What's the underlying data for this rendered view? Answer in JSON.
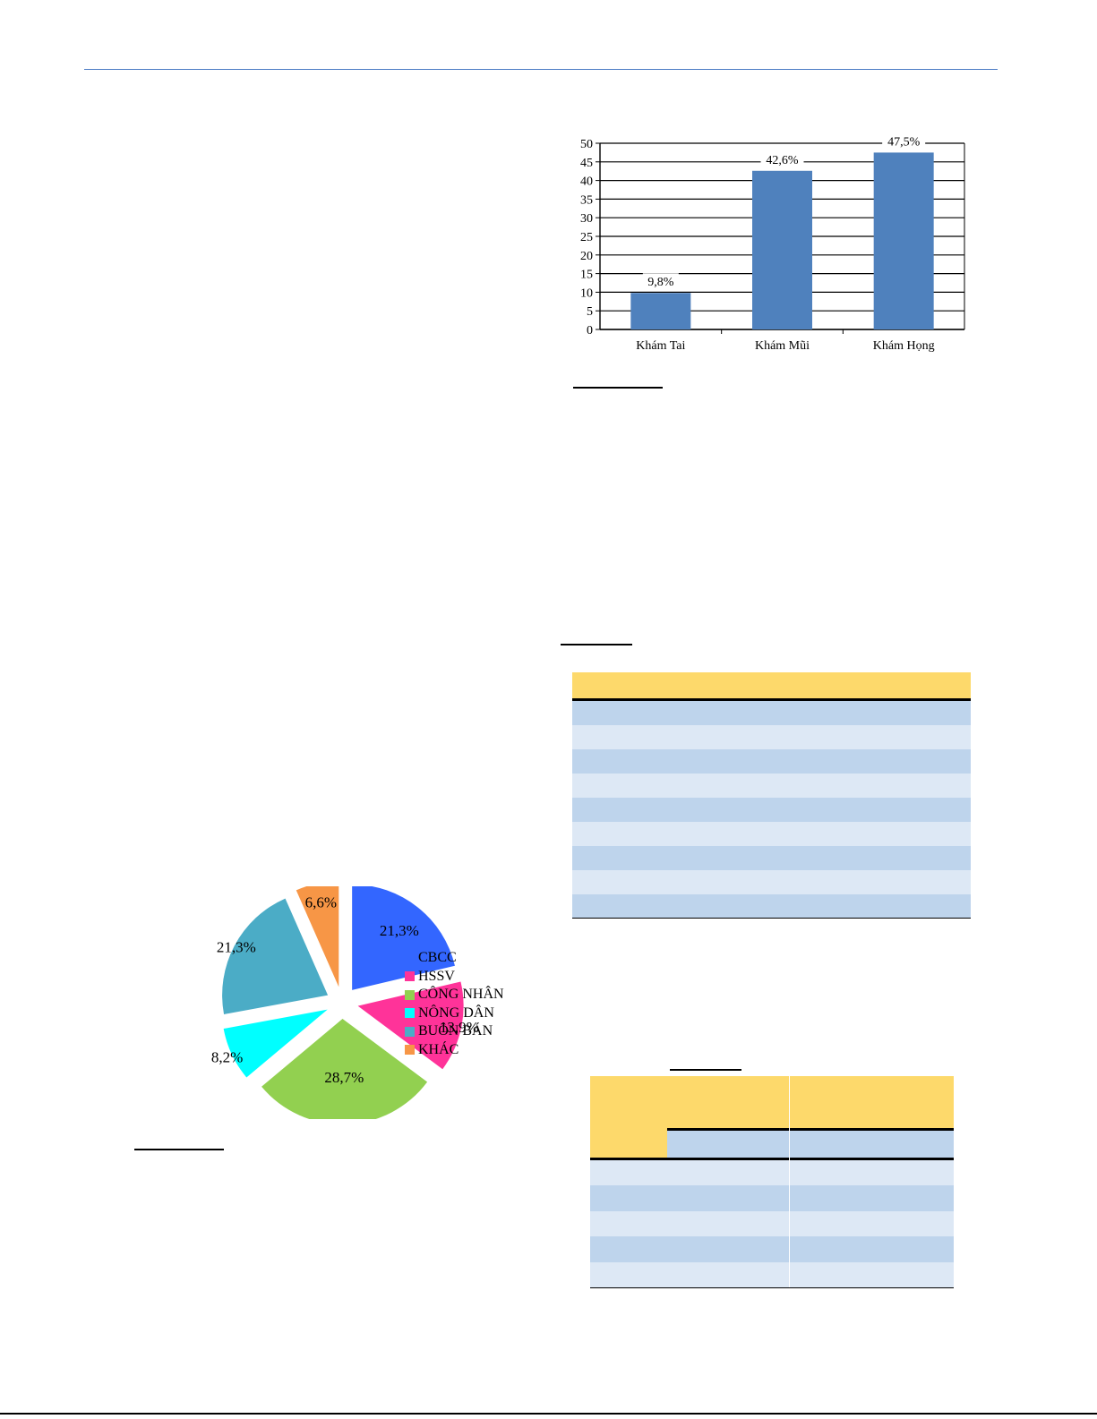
{
  "colors": {
    "header_rule": "#4a7bc4",
    "bar": "#4f81bd",
    "table_header": "#fdd96b",
    "table_row_dark": "#bed4ec",
    "table_row_light": "#dde8f5"
  },
  "bar_chart": {
    "chart_data": {
      "type": "bar",
      "categories": [
        "Khám Tai",
        "Khám Mũi",
        "Khám Họng"
      ],
      "values": [
        9.8,
        42.6,
        47.5
      ],
      "data_labels": [
        "9,8%",
        "42,6%",
        "47,5%"
      ],
      "ylim": [
        0,
        50
      ],
      "yticks": [
        0,
        5,
        10,
        15,
        20,
        25,
        30,
        35,
        40,
        45,
        50
      ],
      "grid": true,
      "legend": "none"
    }
  },
  "pie_chart": {
    "chart_data": {
      "type": "pie",
      "exploded": true,
      "slices": [
        {
          "label": "CBCC",
          "value": 21.3,
          "data_label": "21,3%",
          "color": "#3366ff"
        },
        {
          "label": "HSSV",
          "value": 13.9,
          "data_label": "13,9%",
          "color": "#ff3399"
        },
        {
          "label": "CÔNG NHÂN",
          "value": 28.7,
          "data_label": "28,7%",
          "color": "#92d050"
        },
        {
          "label": "NÔNG DÂN",
          "value": 8.2,
          "data_label": "8,2%",
          "color": "#00ffff"
        },
        {
          "label": "BUÔN BÁN",
          "value": 21.3,
          "data_label": "21,3%",
          "color": "#4bacc6"
        },
        {
          "label": "KHÁC",
          "value": 6.6,
          "data_label": "6,6%",
          "color": "#f79646"
        }
      ],
      "legend": "right"
    }
  }
}
